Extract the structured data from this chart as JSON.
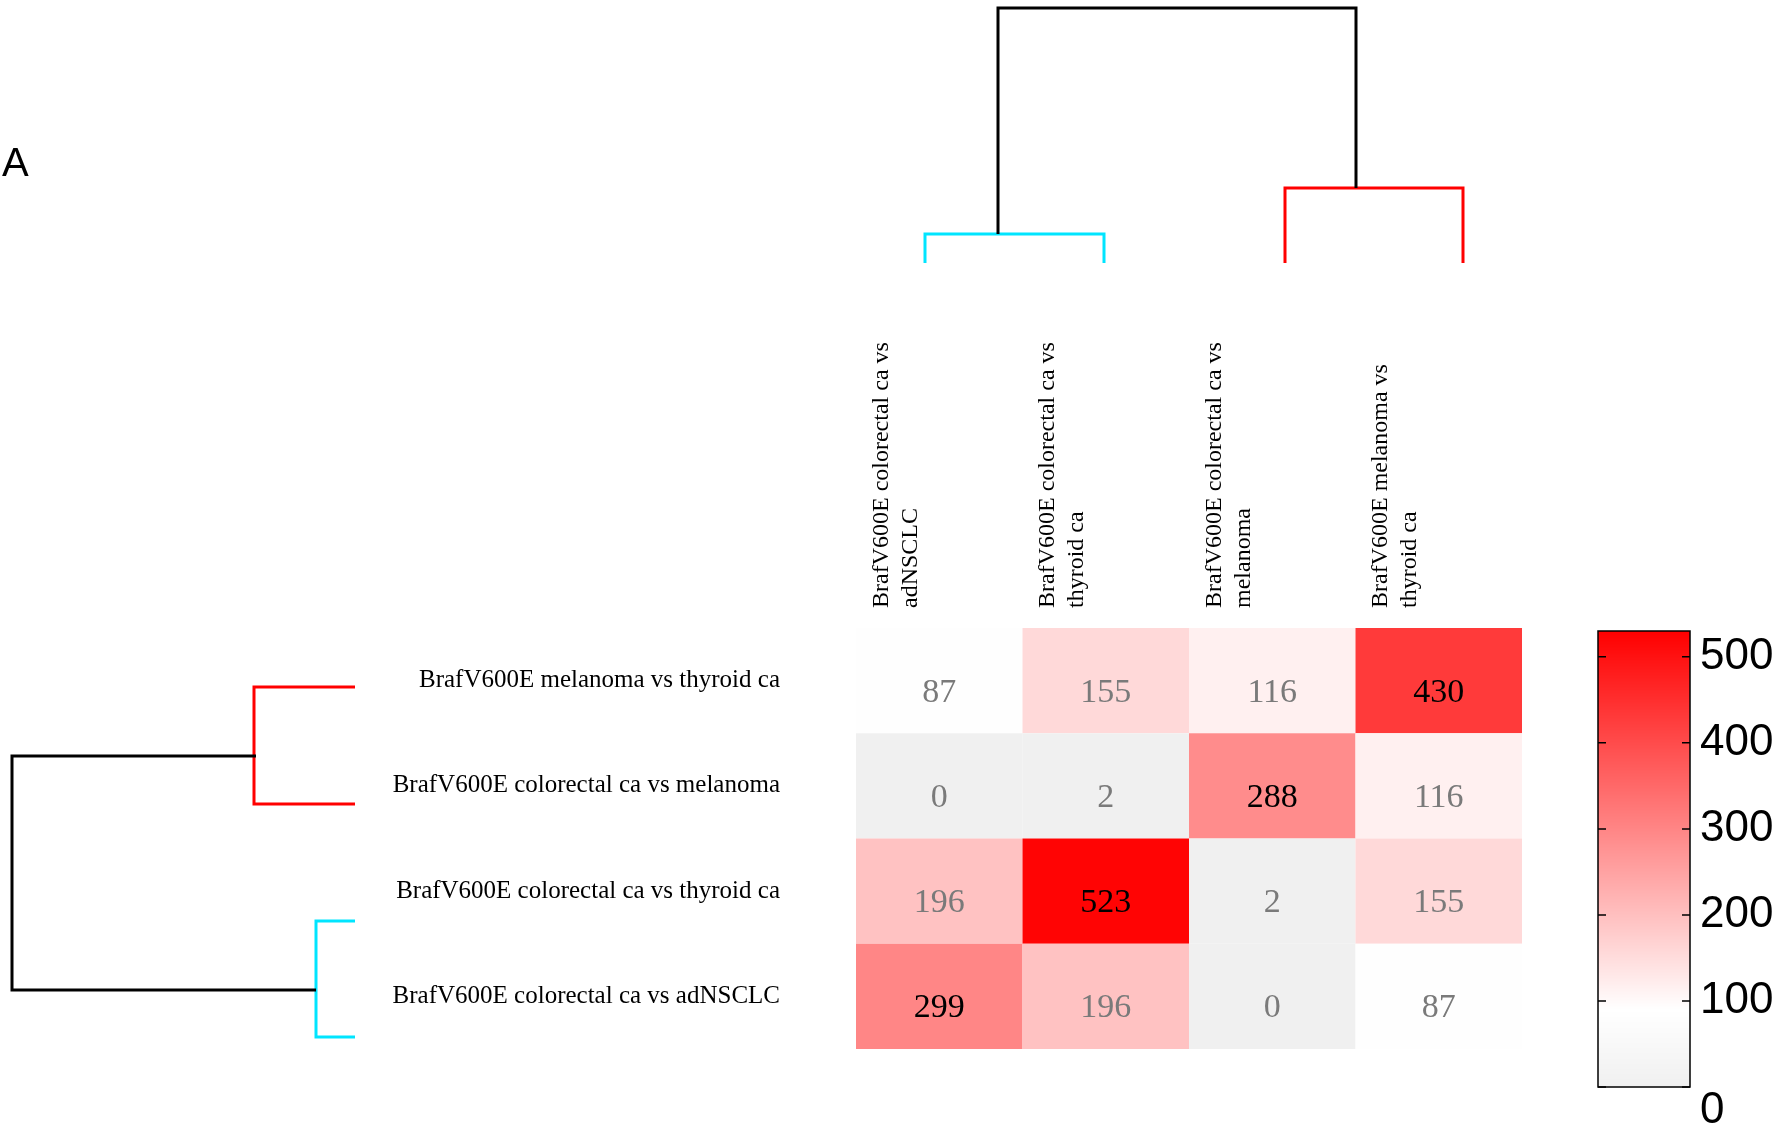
{
  "chart_data": {
    "type": "heatmap",
    "categories": [
      "BrafV600E colorectal ca vs adNSCLC",
      "BrafV600E colorectal ca vs thyroid ca",
      "BrafV600E colorectal ca vs melanoma",
      "BrafV600E melanoma vs thyroid ca"
    ],
    "y_categories": [
      "BrafV600E melanoma vs thyroid ca",
      "BrafV600E colorectal ca vs melanoma",
      "BrafV600E colorectal ca vs thyroid ca",
      "BrafV600E colorectal ca vs adNSCLC"
    ],
    "cells": [
      [
        87,
        155,
        116,
        430
      ],
      [
        0,
        2,
        288,
        116
      ],
      [
        196,
        523,
        2,
        155
      ],
      [
        299,
        196,
        0,
        87
      ]
    ],
    "data_labels": true,
    "clim": [
      0,
      530
    ],
    "cticks": [
      0,
      100,
      200,
      300,
      400,
      500
    ],
    "annotations": [
      "A"
    ]
  }
}
